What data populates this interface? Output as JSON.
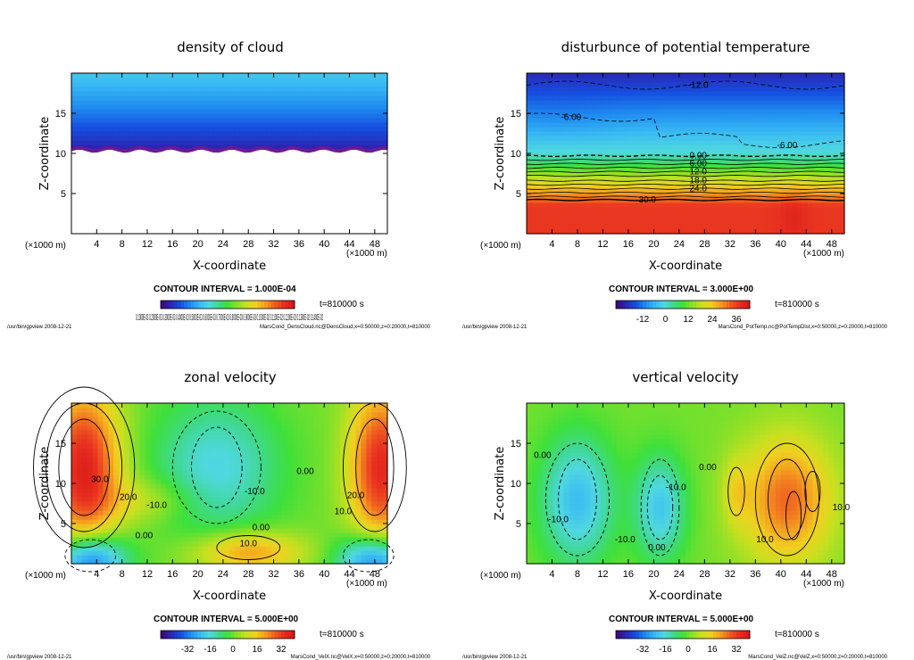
{
  "colors": {
    "rainbow": [
      "#3a0a7a",
      "#2a2ab8",
      "#1550e0",
      "#1f8cf0",
      "#38b8f4",
      "#4fd8e0",
      "#3fd890",
      "#3ee03a",
      "#8ce028",
      "#c8e020",
      "#f0d020",
      "#f4a020",
      "#f06020",
      "#e83020",
      "#d81818"
    ]
  },
  "chart_data": [
    {
      "id": "cloud",
      "type": "heatmap",
      "title": "density of cloud",
      "xlabel": "X-coordinate",
      "ylabel": "Z-coordinate",
      "x_unit": "(×1000 m)",
      "xlim": [
        0,
        50
      ],
      "ylim": [
        0,
        20
      ],
      "xticks": [
        4,
        8,
        12,
        16,
        20,
        24,
        28,
        32,
        36,
        40,
        44,
        48
      ],
      "yticks": [
        5,
        10,
        15
      ],
      "contour_interval": "CONTOUR INTERVAL = 1.000E-04",
      "time": "t=810000 s",
      "colorbar_labels": "0.1000E-03 0.2000E-03 0.3000E-03 0.4000E-03 0.5000E-03 0.6000E-03 0.7000E-03 0.8000E-03 0.9000E-03 0.1000E-02 0.1100E-02 0.1200E-02 0.1300E-02 0.1400E-02",
      "footer_left": "/usr/bin/gpview   2008-12-21",
      "footer_right": "MarsCond_DensCloud.nc@DensCloud,x=0:50000,z=0:20000,t=810000",
      "cloud_base_km": 10.5,
      "contour_labels": []
    },
    {
      "id": "temp",
      "type": "heatmap",
      "title": "disturbunce of potential temperature",
      "xlabel": "X-coordinate",
      "ylabel": "Z-coordinate",
      "x_unit": "(×1000 m)",
      "xlim": [
        0,
        50
      ],
      "ylim": [
        0,
        20
      ],
      "xticks": [
        4,
        8,
        12,
        16,
        20,
        24,
        28,
        32,
        36,
        40,
        44,
        48
      ],
      "yticks": [
        5,
        10,
        15
      ],
      "contour_interval": "CONTOUR INTERVAL = 3.000E+00",
      "time": "t=810000 s",
      "colorbar_ticks": [
        "-12",
        "0",
        "12",
        "24",
        "36"
      ],
      "footer_left": "/usr/bin/gpview   2008-12-21",
      "footer_right": "MarsCond_PotTemp.nc@PotTempDist,x=0:50000,z=0:20000,t=810000",
      "contour_labels": [
        {
          "text": "-12.0",
          "x": 27,
          "z": 18.5
        },
        {
          "text": "-6.00",
          "x": 7,
          "z": 14.5
        },
        {
          "text": "-6.00",
          "x": 41,
          "z": 11.0
        },
        {
          "text": "0.00",
          "x": 27,
          "z": 9.7
        },
        {
          "text": "6.00",
          "x": 27,
          "z": 8.7
        },
        {
          "text": "12.0",
          "x": 27,
          "z": 7.7
        },
        {
          "text": "18.0",
          "x": 27,
          "z": 6.6
        },
        {
          "text": "24.0",
          "x": 27,
          "z": 5.6
        },
        {
          "text": "30.0",
          "x": 19,
          "z": 4.2
        }
      ]
    },
    {
      "id": "zonal",
      "type": "heatmap",
      "title": "zonal velocity",
      "xlabel": "X-coordinate",
      "ylabel": "Z-coordinate",
      "x_unit": "(×1000 m)",
      "xlim": [
        0,
        50
      ],
      "ylim": [
        0,
        20
      ],
      "xticks": [
        4,
        8,
        12,
        16,
        20,
        24,
        28,
        32,
        36,
        40,
        44,
        48
      ],
      "yticks": [
        5,
        10,
        15
      ],
      "contour_interval": "CONTOUR INTERVAL = 5.000E+00",
      "time": "t=810000 s",
      "colorbar_ticks": [
        "-32",
        "-16",
        "0",
        "16",
        "32"
      ],
      "footer_left": "/usr/bin/gpview   2008-12-21",
      "footer_right": "MarsCond_VelX.nc@VelX,x=0:50000,z=0:20000,t=810000",
      "contour_labels": [
        {
          "text": "30.0",
          "x": 4.5,
          "z": 10.5
        },
        {
          "text": "20.0",
          "x": 9,
          "z": 8.3
        },
        {
          "text": "-10.0",
          "x": 13.5,
          "z": 7.3
        },
        {
          "text": "0.00",
          "x": 11.5,
          "z": 3.5
        },
        {
          "text": "10.0",
          "x": 28,
          "z": 2.5
        },
        {
          "text": "0.00",
          "x": 30,
          "z": 4.5
        },
        {
          "text": "-10.0",
          "x": 29,
          "z": 9.0
        },
        {
          "text": "0.00",
          "x": 37,
          "z": 11.5
        },
        {
          "text": "20.0",
          "x": 45,
          "z": 8.5
        },
        {
          "text": "10.0",
          "x": 43,
          "z": 6.5
        }
      ]
    },
    {
      "id": "vertical",
      "type": "heatmap",
      "title": "vertical velocity",
      "xlabel": "X-coordinate",
      "ylabel": "Z-coordinate",
      "x_unit": "(×1000 m)",
      "xlim": [
        0,
        50
      ],
      "ylim": [
        0,
        20
      ],
      "xticks": [
        4,
        8,
        12,
        16,
        20,
        24,
        28,
        32,
        36,
        40,
        44,
        48
      ],
      "yticks": [
        5,
        10,
        15
      ],
      "contour_interval": "CONTOUR INTERVAL = 5.000E+00",
      "time": "t=810000 s",
      "colorbar_ticks": [
        "-32",
        "-16",
        "0",
        "16",
        "32"
      ],
      "footer_left": "/usr/bin/gpview   2008-12-21",
      "footer_right": "MarsCond_VelZ.nc@VelZ,x=0:50000,z=0:20000,t=810000",
      "contour_labels": [
        {
          "text": "0.00",
          "x": 2.5,
          "z": 13.5
        },
        {
          "text": "-10.0",
          "x": 5,
          "z": 5.5
        },
        {
          "text": "-10.0",
          "x": 15.5,
          "z": 3.0
        },
        {
          "text": "0.00",
          "x": 20.5,
          "z": 2.0
        },
        {
          "text": "-10.0",
          "x": 23.5,
          "z": 9.5
        },
        {
          "text": "0.00",
          "x": 28.5,
          "z": 12.0
        },
        {
          "text": "10.0",
          "x": 37.5,
          "z": 3.0
        },
        {
          "text": "10.0",
          "x": 49.5,
          "z": 7.0
        }
      ]
    }
  ]
}
